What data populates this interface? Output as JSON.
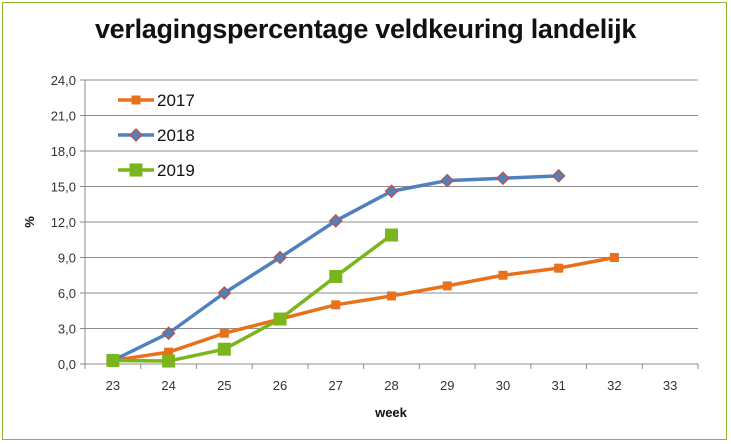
{
  "chart_data": {
    "type": "line",
    "title": "verlagingspercentage veldkeuring landelijk",
    "xlabel": "week",
    "ylabel": "%",
    "categories": [
      "23",
      "24",
      "25",
      "26",
      "27",
      "28",
      "29",
      "30",
      "31",
      "32",
      "33"
    ],
    "ylim": [
      0,
      24
    ],
    "yticks": [
      "0,0",
      "3,0",
      "6,0",
      "9,0",
      "12,0",
      "15,0",
      "18,0",
      "21,0",
      "24,0"
    ],
    "ytick_values": [
      0,
      3,
      6,
      9,
      12,
      15,
      18,
      21,
      24
    ],
    "grid": true,
    "legend_position": "top-left",
    "series": [
      {
        "name": "2017",
        "color": "#E8711C",
        "marker": "square",
        "values": [
          0.3,
          1.0,
          2.6,
          3.8,
          5.0,
          5.75,
          6.6,
          7.5,
          8.1,
          9.0,
          null
        ]
      },
      {
        "name": "2018",
        "color": "#4F81BD",
        "marker": "diamond",
        "marker_edge": "#C0504D",
        "values": [
          0.3,
          2.6,
          6.0,
          9.0,
          12.1,
          14.6,
          15.5,
          15.7,
          15.9,
          null,
          null
        ]
      },
      {
        "name": "2019",
        "color": "#7AB51D",
        "marker": "square-large",
        "values": [
          0.3,
          0.25,
          1.25,
          3.8,
          7.4,
          10.9,
          null,
          null,
          null,
          null,
          null
        ]
      }
    ]
  }
}
